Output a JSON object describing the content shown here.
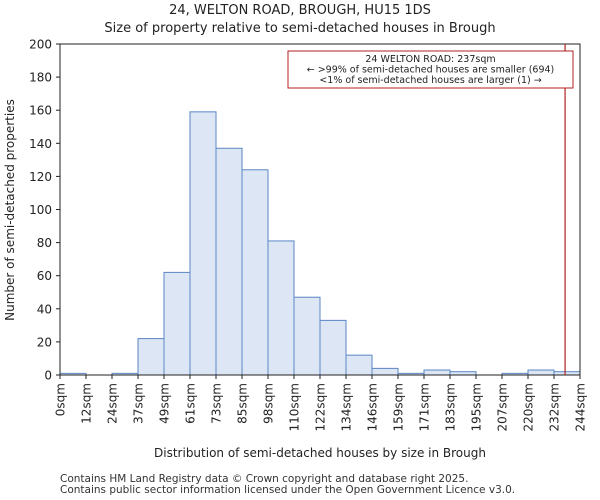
{
  "chart_data": {
    "type": "bar",
    "title": "24, WELTON ROAD, BROUGH, HU15 1DS",
    "subtitle": "Size of property relative to semi-detached houses in Brough",
    "xlabel": "Distribution of semi-detached houses by size in Brough",
    "ylabel": "Number of semi-detached properties",
    "ylim": [
      0,
      200
    ],
    "yticks": [
      0,
      20,
      40,
      60,
      80,
      100,
      120,
      140,
      160,
      180,
      200
    ],
    "xlim": [
      0,
      244
    ],
    "x_tick_labels": [
      "0sqm",
      "12sqm",
      "24sqm",
      "37sqm",
      "49sqm",
      "61sqm",
      "73sqm",
      "85sqm",
      "98sqm",
      "110sqm",
      "122sqm",
      "134sqm",
      "146sqm",
      "159sqm",
      "171sqm",
      "183sqm",
      "195sqm",
      "207sqm",
      "220sqm",
      "232sqm",
      "244sqm"
    ],
    "categories": [
      "0-12",
      "12-24",
      "24-37",
      "37-49",
      "49-61",
      "61-73",
      "73-85",
      "85-98",
      "98-110",
      "110-122",
      "122-134",
      "134-146",
      "146-159",
      "159-171",
      "171-183",
      "183-195",
      "195-207",
      "207-220",
      "220-232",
      "232-244"
    ],
    "values": [
      1,
      0,
      1,
      22,
      62,
      159,
      137,
      124,
      81,
      47,
      33,
      12,
      4,
      1,
      3,
      2,
      0,
      1,
      3,
      2
    ],
    "bar_fill": "#dce6f5",
    "bar_edge": "#5b86c4",
    "marker": {
      "value": 237,
      "color": "#b22222",
      "annotation_lines": [
        "24 WELTON ROAD: 237sqm",
        "← >99% of semi-detached houses are smaller (694)",
        "<1% of semi-detached houses are larger (1) →"
      ]
    }
  },
  "footer": {
    "line1": "Contains HM Land Registry data © Crown copyright and database right 2025.",
    "line2": "Contains public sector information licensed under the Open Government Licence v3.0."
  }
}
